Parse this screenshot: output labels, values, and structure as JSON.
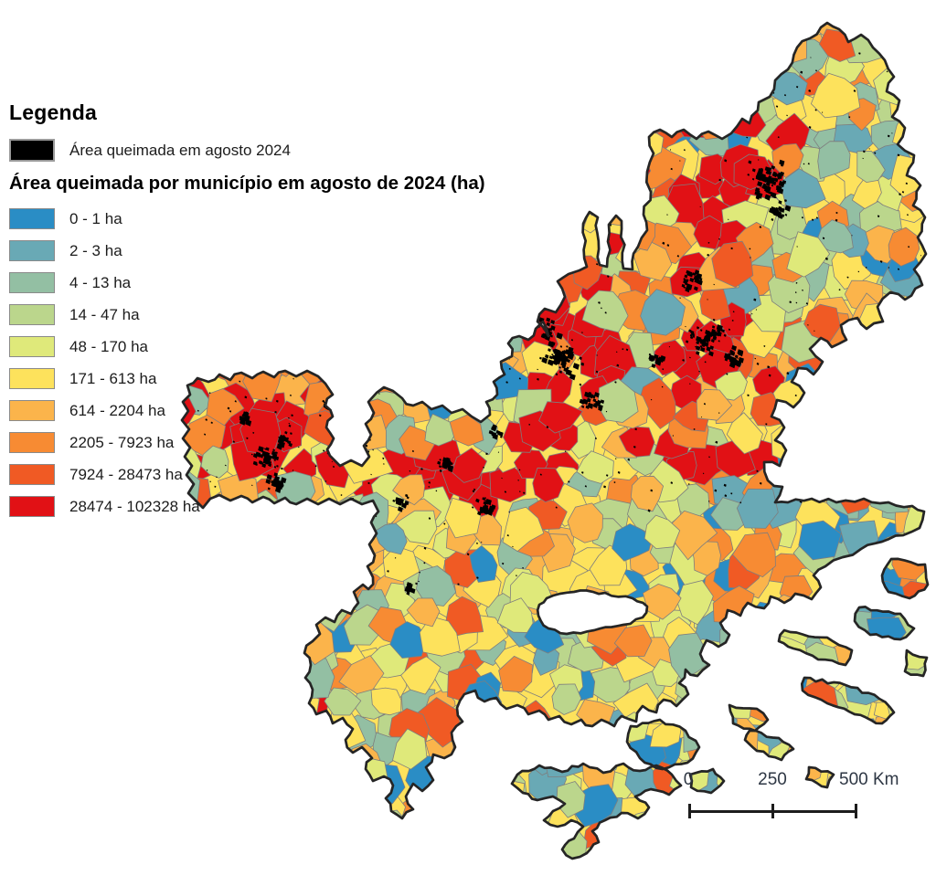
{
  "legend": {
    "title": "Legenda",
    "burned_item": {
      "label": "Área queimada em agosto 2024",
      "color": "#000000"
    },
    "choropleth_title": "Área queimada por município em agosto de 2024 (ha)",
    "classes": [
      {
        "label": "0 - 1 ha",
        "color": "#2A8DC5"
      },
      {
        "label": "2 - 3 ha",
        "color": "#69A9B5"
      },
      {
        "label": "4 - 13 ha",
        "color": "#93BFA3"
      },
      {
        "label": "14 - 47 ha",
        "color": "#BBD68C"
      },
      {
        "label": "48 - 170 ha",
        "color": "#DFE97A"
      },
      {
        "label": "171 - 613 ha",
        "color": "#FDE25C"
      },
      {
        "label": "614 - 2204 ha",
        "color": "#FBB44B"
      },
      {
        "label": "2205 - 7923 ha",
        "color": "#F78B33"
      },
      {
        "label": "7924 - 28473 ha",
        "color": "#F05A24"
      },
      {
        "label": "28474 - 102328 ha",
        "color": "#E11115"
      }
    ]
  },
  "scale_bar": {
    "labels": [
      "0",
      "250",
      "500 Km"
    ]
  },
  "map": {
    "outline_color": "#252525",
    "municipality_border_color": "#7E7E7E",
    "burn_color": "#000000",
    "background": "#ffffff"
  }
}
